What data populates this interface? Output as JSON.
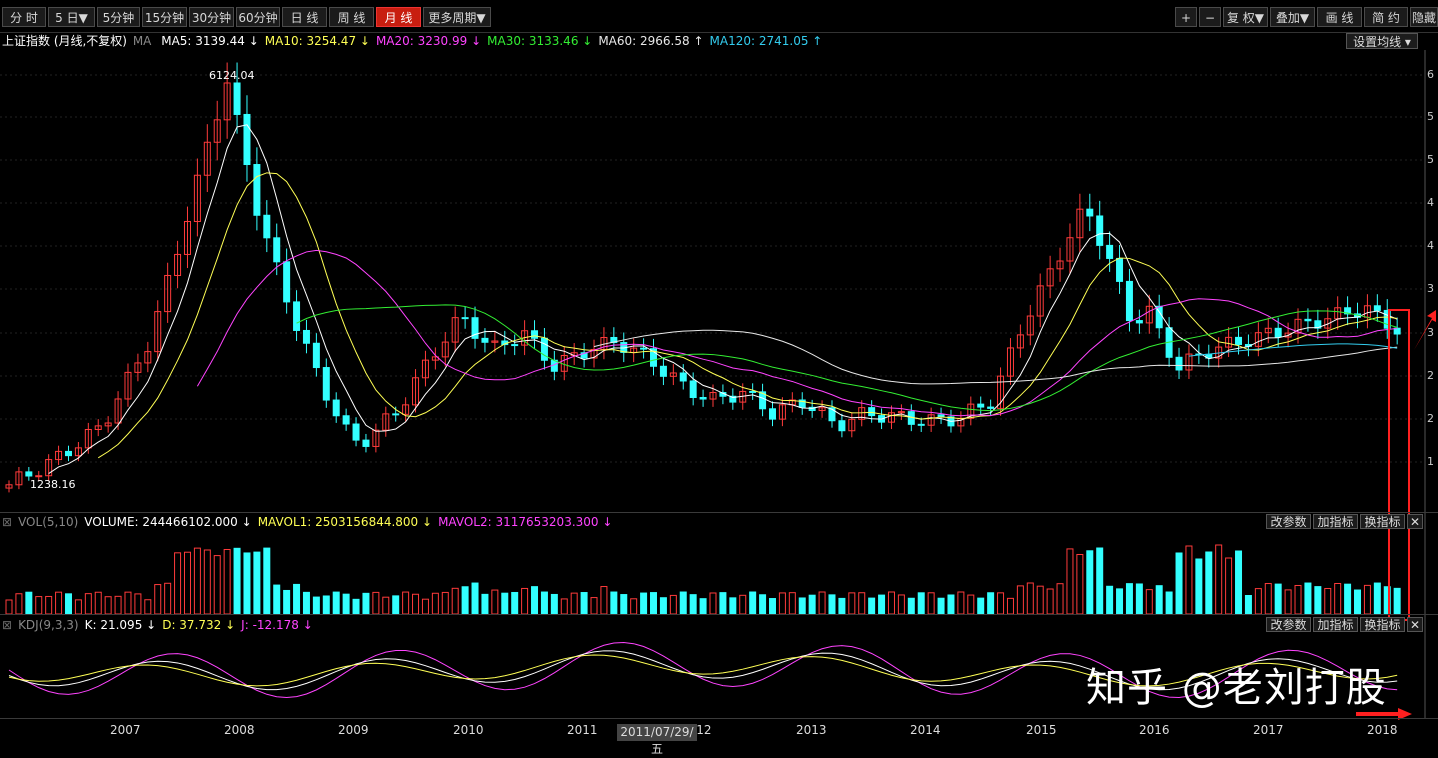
{
  "toolbar": {
    "left_buttons": [
      "分 时",
      "5 日▼",
      "5分钟",
      "15分钟",
      "30分钟",
      "60分钟",
      "日 线",
      "周 线",
      "月 线",
      "更多周期▼"
    ],
    "active_index": 8,
    "right_buttons": [
      "+",
      "−",
      "复 权▼",
      "叠加▼",
      "画 线",
      "简 约",
      "隐藏"
    ]
  },
  "main_legend": {
    "title": "上证指数 (月线,不复权)",
    "ma_label": "MA",
    "items": [
      {
        "text": "MA5: 3139.44 ↓",
        "color": "#ffffff"
      },
      {
        "text": "MA10: 3254.47 ↓",
        "color": "#ffff55"
      },
      {
        "text": "MA20: 3230.99 ↓",
        "color": "#ff44ff"
      },
      {
        "text": "MA30: 3133.46 ↓",
        "color": "#33ee33"
      },
      {
        "text": "MA60: 2966.58 ↑",
        "color": "#e8e8e8"
      },
      {
        "text": "MA120: 2741.05 ↑",
        "color": "#33ccee"
      }
    ],
    "settings_button": "设置均线 ▾"
  },
  "annotations": {
    "high": "6124.04",
    "low": "1238.16"
  },
  "y_axis_labels": [
    "6",
    "5",
    "5",
    "4",
    "4",
    "3",
    "3",
    "2",
    "2",
    "1"
  ],
  "vol_legend": {
    "name": "VOL(5,10)",
    "items": [
      {
        "text": "VOLUME: 244466102.000 ↓",
        "color": "#ffffff"
      },
      {
        "text": "MAVOL1: 2503156844.800 ↓",
        "color": "#ffff55"
      },
      {
        "text": "MAVOL2: 3117653203.300 ↓",
        "color": "#ff44ff"
      }
    ],
    "buttons": [
      "改参数",
      "加指标",
      "换指标",
      "✕"
    ]
  },
  "kdj_legend": {
    "name": "KDJ(9,3,3)",
    "items": [
      {
        "text": "K: 21.095 ↓",
        "color": "#ffffff"
      },
      {
        "text": "D: 37.732 ↓",
        "color": "#ffff55"
      },
      {
        "text": "J: -12.178 ↓",
        "color": "#ff44ff"
      }
    ],
    "buttons": [
      "改参数",
      "加指标",
      "换指标",
      "✕"
    ]
  },
  "x_axis": {
    "years": [
      "2007",
      "2008",
      "2009",
      "2010",
      "2011",
      "2012",
      "2013",
      "2014",
      "2015",
      "2016",
      "2017",
      "2018"
    ],
    "cursor_date": "2011/07/29/五"
  },
  "watermark": "知乎 @老刘打股",
  "colors": {
    "up": "#ff3b3b",
    "down": "#33ffff",
    "bg": "#000000",
    "highlight": "#ff2020"
  },
  "chart_data": {
    "type": "candlestick",
    "title": "上证指数 (月线,不复权)",
    "x_range": [
      "2006-06",
      "2018-03"
    ],
    "highlight_max": 6124.04,
    "highlight_min": 1238.16,
    "moving_averages": {
      "MA5": 3139.44,
      "MA10": 3254.47,
      "MA20": 3230.99,
      "MA30": 3133.46,
      "MA60": 2966.58,
      "MA120": 2741.05
    },
    "volume": {
      "VOLUME": 244466102.0,
      "MAVOL1": 2503156844.8,
      "MAVOL2": 3117653203.3
    },
    "kdj": {
      "K": 21.095,
      "D": 37.732,
      "J": -12.178
    }
  }
}
